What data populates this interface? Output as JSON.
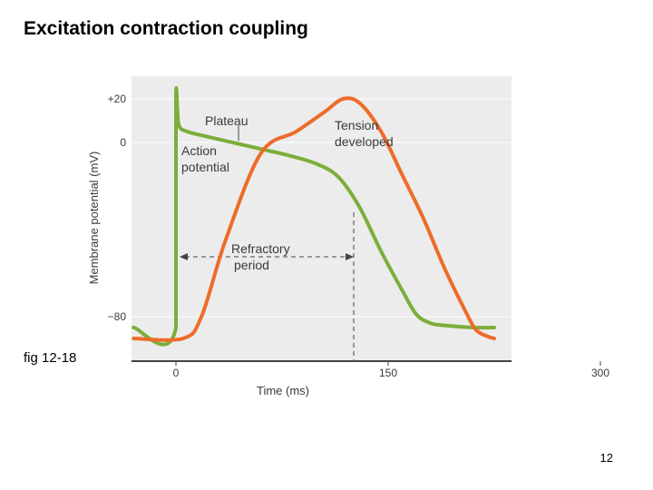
{
  "slide": {
    "title": "Excitation contraction coupling",
    "caption": "fig 12-18",
    "page_number": "12"
  },
  "colors": {
    "plot_background": "#ececec",
    "action_potential": "#7cae3a",
    "tension": "#ee6b2a",
    "axis": "#444444",
    "text": "#3a3a3a"
  },
  "chart_data": {
    "type": "line",
    "xlabel": "Time (ms)",
    "ylabel": "Membrane potential (mV)",
    "x_ticks": [
      0,
      150,
      300
    ],
    "y_ticks": [
      20,
      0,
      -80
    ],
    "y_tick_labels": [
      "+20",
      "0",
      "−80"
    ],
    "xlim": [
      -30,
      220
    ],
    "ylim": [
      -92,
      20
    ],
    "grid": true,
    "series": [
      {
        "name": "Action potential",
        "color": "#7cae3a",
        "points": [
          [
            -30,
            -85
          ],
          [
            0,
            -85
          ],
          [
            0,
            20
          ],
          [
            2,
            8
          ],
          [
            8,
            5
          ],
          [
            20,
            3
          ],
          [
            40,
            0
          ],
          [
            60,
            -3
          ],
          [
            80,
            -6
          ],
          [
            100,
            -10
          ],
          [
            115,
            -16
          ],
          [
            130,
            -30
          ],
          [
            145,
            -50
          ],
          [
            160,
            -68
          ],
          [
            170,
            -79
          ],
          [
            180,
            -83
          ],
          [
            190,
            -84
          ],
          [
            210,
            -85
          ],
          [
            225,
            -85
          ]
        ]
      },
      {
        "name": "Tension developed",
        "color": "#ee6b2a",
        "points": [
          [
            -30,
            -90
          ],
          [
            5,
            -90
          ],
          [
            18,
            -80
          ],
          [
            35,
            -45
          ],
          [
            60,
            -5
          ],
          [
            85,
            5
          ],
          [
            105,
            14
          ],
          [
            118,
            20
          ],
          [
            130,
            18
          ],
          [
            145,
            5
          ],
          [
            160,
            -15
          ],
          [
            175,
            -35
          ],
          [
            190,
            -58
          ],
          [
            205,
            -78
          ],
          [
            212,
            -86
          ],
          [
            220,
            -89
          ],
          [
            225,
            -90
          ]
        ]
      }
    ],
    "annotations": {
      "plateau": "Plateau",
      "action_potential": [
        "Action",
        "potential"
      ],
      "tension_developed": [
        "Tension",
        "developed"
      ],
      "refractory_period": [
        "Refractory",
        "period"
      ]
    }
  }
}
